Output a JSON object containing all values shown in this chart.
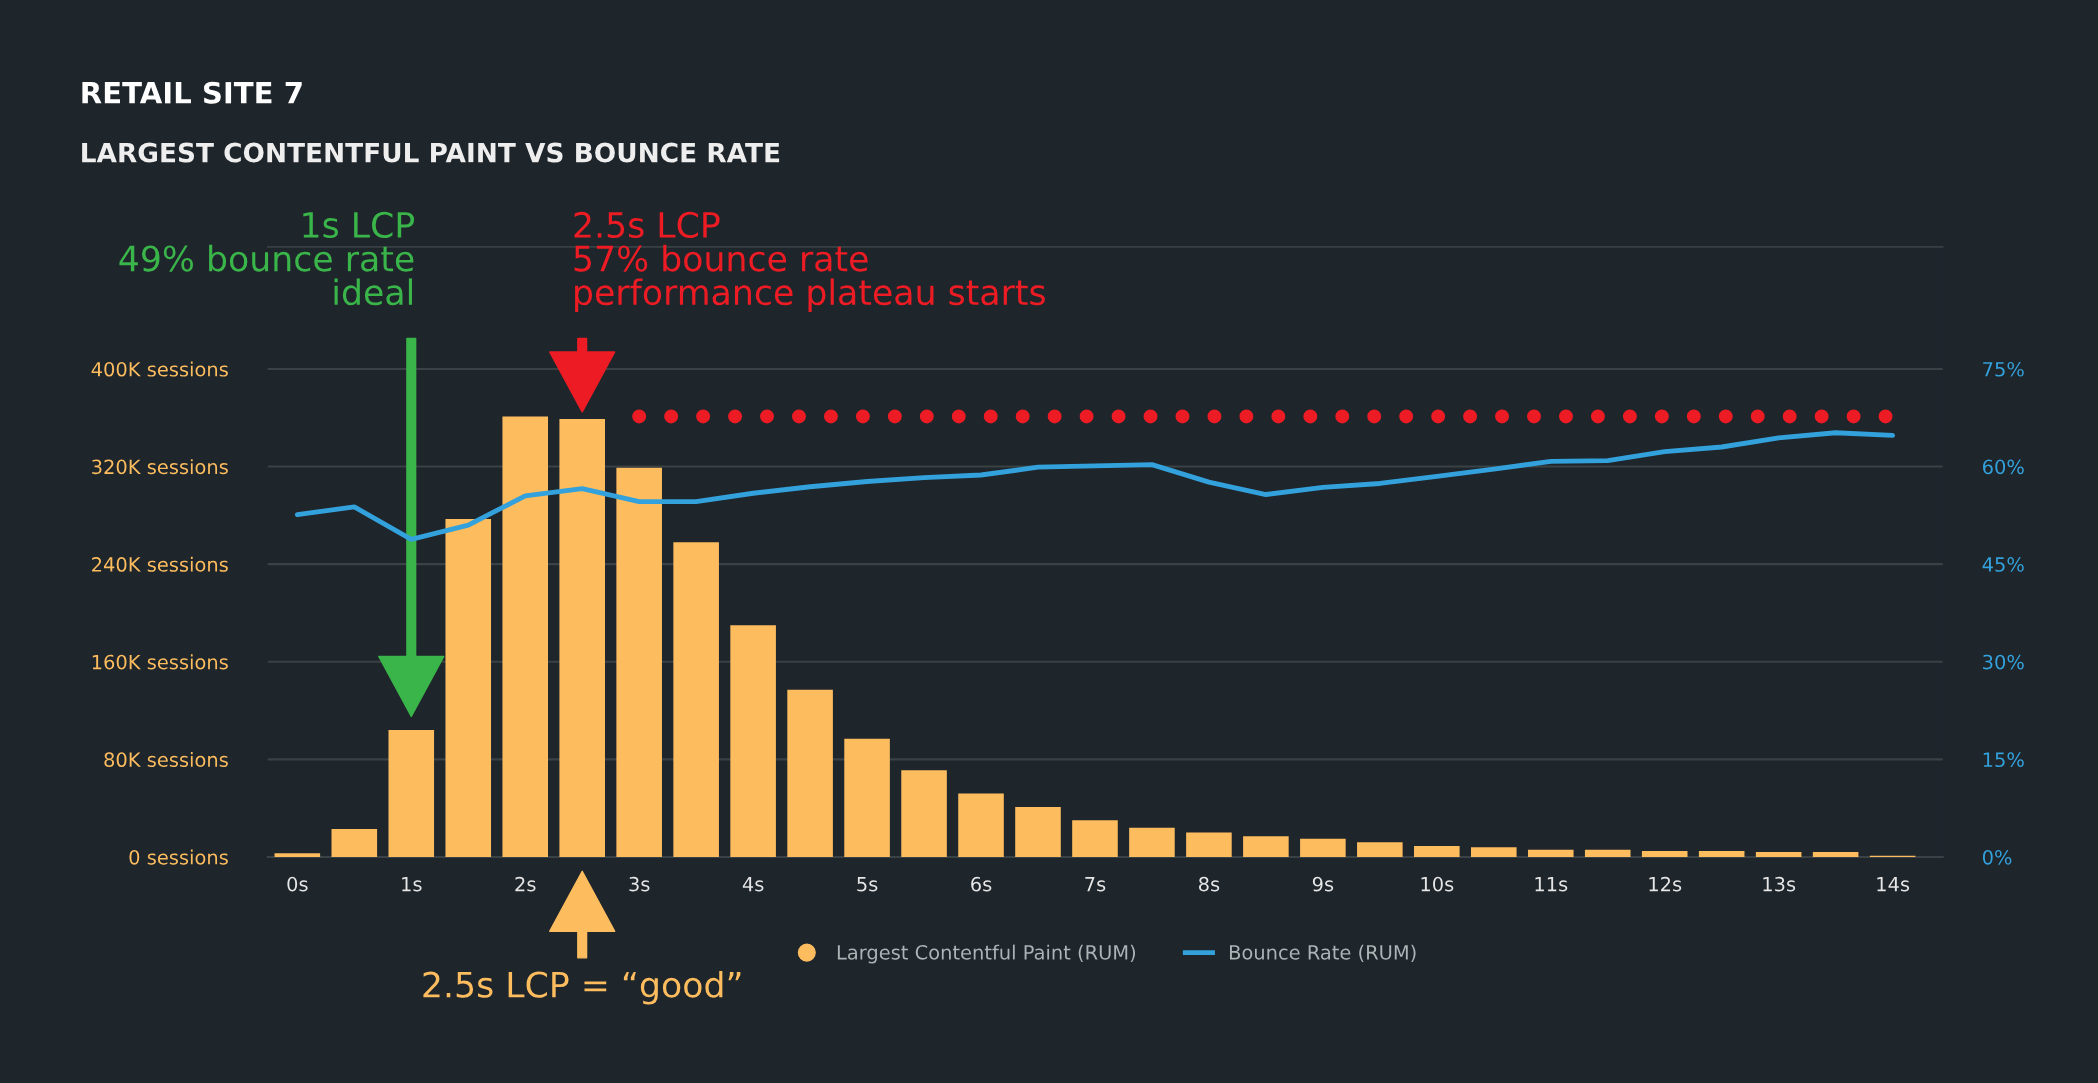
{
  "chart_data": {
    "type": "bar",
    "title": "RETAIL SITE 7",
    "subtitle": "LARGEST CONTENTFUL PAINT VS BOUNCE RATE",
    "categories": [
      "0s",
      null,
      "1s",
      null,
      "2s",
      null,
      "3s",
      null,
      "4s",
      null,
      "5s",
      null,
      "6s",
      null,
      "7s",
      null,
      "8s",
      null,
      "9s",
      null,
      "10s",
      null,
      "11s",
      null,
      "12s",
      null,
      "13s",
      null,
      "14s"
    ],
    "series": [
      {
        "name": "Largest Contentful Paint (RUM)",
        "color": "#fdbd5f",
        "values": [
          3000,
          23000,
          104000,
          277000,
          361000,
          359000,
          319000,
          258000,
          190000,
          137000,
          97000,
          71000,
          52000,
          41000,
          30000,
          24000,
          20000,
          17000,
          15000,
          12000,
          9000,
          8000,
          6000,
          6000,
          5000,
          5000,
          4000,
          4000,
          1000
        ]
      },
      {
        "name": "Bounce Rate (RUM)",
        "type": "line",
        "axis": "y2",
        "color": "#33a1dc",
        "values": [
          52.6,
          53.8,
          48.8,
          51.0,
          55.5,
          56.6,
          54.6,
          54.6,
          55.9,
          56.9,
          57.7,
          58.3,
          58.7,
          59.9,
          60.1,
          60.3,
          57.6,
          55.7,
          56.8,
          57.4,
          58.5,
          59.6,
          60.8,
          60.9,
          62.3,
          63.0,
          64.4,
          65.2,
          64.8
        ]
      },
      {
        "type": "line",
        "axis": "y2",
        "color": "#ed1c24",
        "line_style": "dotted",
        "values": [
          null,
          null,
          null,
          null,
          null,
          null,
          67.7,
          67.7,
          67.7,
          67.7,
          67.7,
          67.7,
          67.7,
          67.7,
          67.7,
          67.7,
          67.7,
          67.7,
          67.7,
          67.7,
          67.7,
          67.7,
          67.7,
          67.7,
          67.7,
          67.7,
          67.7,
          67.7,
          67.7
        ]
      }
    ],
    "ylim": [
      0,
      500000
    ],
    "yticks": [
      {
        "value": 0,
        "label": "0 sessions"
      },
      {
        "value": 80000,
        "label": "80K sessions"
      },
      {
        "value": 160000,
        "label": "160K sessions"
      },
      {
        "value": 240000,
        "label": "240K sessions"
      },
      {
        "value": 320000,
        "label": "320K sessions"
      },
      {
        "value": 400000,
        "label": "400K sessions"
      }
    ],
    "y2lim": [
      0,
      93.75
    ],
    "y2ticks": [
      {
        "value": 0,
        "label": "0%"
      },
      {
        "value": 15,
        "label": "15%"
      },
      {
        "value": 30,
        "label": "30%"
      },
      {
        "value": 45,
        "label": "45%"
      },
      {
        "value": 60,
        "label": "60%"
      },
      {
        "value": 75,
        "label": "75%"
      }
    ],
    "grid": "y",
    "legend": "bottom",
    "annotations": [
      "1s LCP\n49% bounce rate\nideal",
      "2.5s LCP\n57% bounce rate\nperformance plateau starts",
      "2.5s LCP = “good”"
    ]
  }
}
